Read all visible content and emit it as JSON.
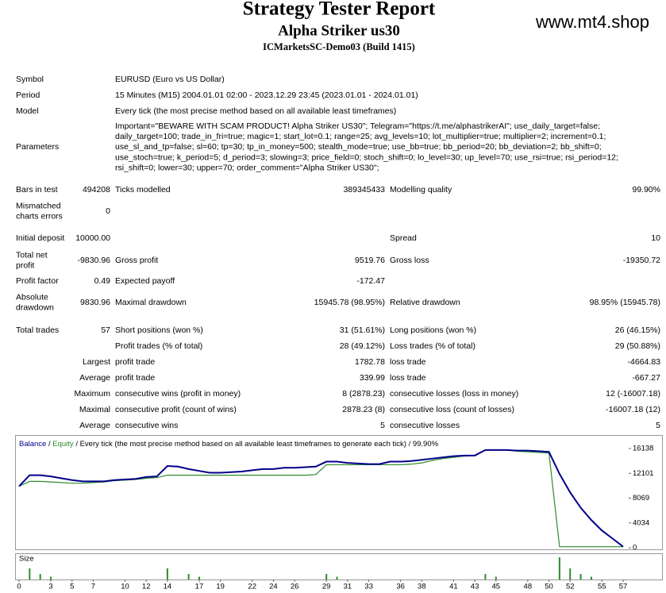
{
  "header": {
    "title": "Strategy Tester Report",
    "subtitle": "Alpha Striker us30",
    "server": "ICMarketsSC-Demo03 (Build 1415)",
    "site": "www.mt4.shop"
  },
  "info": [
    {
      "label": "Symbol",
      "lines": [
        "EURUSD (Euro vs US Dollar)"
      ]
    },
    {
      "label": "Period",
      "lines": [
        "15 Minutes (M15) 2004.01.01 02:00 - 2023.12.29 23:45 (2023.01.01 - 2024.01.01)"
      ]
    },
    {
      "label": "Model",
      "lines": [
        "Every tick (the most precise method based on all available least timeframes)"
      ]
    },
    {
      "label": "Parameters",
      "lines": [
        "Important=\"BEWARE WITH SCAM PRODUCT! Alpha Striker US30\"; Telegram=\"https://t.me/alphastrikerAI\"; use_daily_target=false;",
        "daily_target=100; trade_in_fri=true; magic=1; start_lot=0.1; range=25; avg_levels=10; lot_multiplier=true; multiplier=2; increment=0.1;",
        "use_sl_and_tp=false; sl=60; tp=30; tp_in_money=500; stealth_mode=true; use_bb=true; bb_period=20; bb_deviation=2; bb_shift=0;",
        "use_stoch=true; k_period=5; d_period=3; slowing=3; price_field=0; stoch_shift=0; lo_level=30; up_level=70; use_rsi=true; rsi_period=12;",
        "rsi_shift=0; lower=30; upper=70; order_comment=\"Alpha Striker US30\";"
      ]
    }
  ],
  "stats": [
    {
      "label": [
        "Bars in test"
      ],
      "value": "494208",
      "label2": "Ticks modelled",
      "value2": "389345433",
      "label3": "Modelling quality",
      "value3": "99.90%"
    },
    {
      "label": [
        "Mismatched",
        "charts errors"
      ],
      "value": "0"
    },
    {
      "label": [
        "Initial deposit"
      ],
      "value": "10000.00",
      "label3": "Spread",
      "value3": "10"
    },
    {
      "label": [
        "Total net",
        "profit"
      ],
      "value": "-9830.96",
      "label2": "Gross profit",
      "value2": "9519.76",
      "label3": "Gross loss",
      "value3": "-19350.72"
    },
    {
      "label": [
        "Profit factor"
      ],
      "value": "0.49",
      "label2": "Expected payoff",
      "value2": "-172.47"
    },
    {
      "label": [
        "Absolute",
        "drawdown"
      ],
      "value": "9830.96",
      "label2": "Maximal drawdown",
      "value2": "15945.78 (98.95%)",
      "label3": "Relative drawdown",
      "value3": "98.95% (15945.78)"
    },
    {
      "label": [
        "Total trades"
      ],
      "value": "57",
      "label2": "Short positions (won %)",
      "value2": "31 (51.61%)",
      "label3": "Long positions (won %)",
      "value3": "26 (46.15%)"
    },
    {
      "label2": "Profit trades (% of total)",
      "value2": "28 (49.12%)",
      "label3": "Loss trades (% of total)",
      "value3": "29 (50.88%)"
    },
    {
      "value": "Largest",
      "label2": "profit trade",
      "value2": "1782.78",
      "label3": "loss trade",
      "value3": "-4664.83"
    },
    {
      "value": "Average",
      "label2": "profit trade",
      "value2": "339.99",
      "label3": "loss trade",
      "value3": "-667.27"
    },
    {
      "value": "Maximum",
      "label2": "consecutive wins (profit in money)",
      "value2": "8 (2878.23)",
      "label3": "consecutive losses (loss in money)",
      "value3": "12 (-16007.18)"
    },
    {
      "value": "Maximal",
      "label2": "consecutive profit (count of wins)",
      "value2": "2878.23 (8)",
      "label3": "consecutive loss (count of losses)",
      "value3": "-16007.18 (12)"
    },
    {
      "value": "Average",
      "label2": "consecutive wins",
      "value2": "5",
      "label3": "consecutive losses",
      "value3": "5"
    }
  ],
  "chart_data": {
    "type": "line",
    "separator": "/",
    "caption": "/ Every tick (the most precise method based on all available least timeframes to generate each tick) / 99.90%",
    "xlim": [
      0,
      57
    ],
    "xticks": [
      0,
      3,
      5,
      7,
      10,
      12,
      14,
      17,
      19,
      22,
      24,
      26,
      29,
      31,
      33,
      36,
      38,
      41,
      43,
      45,
      48,
      50,
      52,
      55,
      57
    ],
    "ylim": [
      0,
      16138
    ],
    "yticks": [
      16138,
      12101,
      8069,
      4034,
      0
    ],
    "series": [
      {
        "name": "Balance",
        "color": "#00008b",
        "values": [
          10000,
          11800,
          11800,
          11600,
          11300,
          11000,
          10800,
          10800,
          10800,
          11000,
          11100,
          11200,
          11500,
          11600,
          13300,
          13200,
          12800,
          12500,
          12200,
          12200,
          12300,
          12400,
          12600,
          12800,
          12800,
          13000,
          13000,
          13100,
          13200,
          14000,
          14000,
          13800,
          13700,
          13600,
          13600,
          14000,
          14000,
          14100,
          14300,
          14500,
          14700,
          14900,
          15000,
          15000,
          15900,
          15900,
          15900,
          15800,
          15800,
          15700,
          15600,
          12000,
          9000,
          6500,
          4500,
          2800,
          1500,
          170
        ]
      },
      {
        "name": "Equity",
        "color": "#2e8b2e",
        "values": [
          10000,
          10800,
          10800,
          10700,
          10600,
          10500,
          10500,
          10600,
          10700,
          10900,
          11000,
          11100,
          11300,
          11400,
          11800,
          11800,
          11800,
          11800,
          11800,
          11800,
          11800,
          11800,
          11800,
          11800,
          11800,
          11800,
          11800,
          11800,
          11900,
          13500,
          13500,
          13500,
          13500,
          13500,
          13500,
          13500,
          13500,
          13600,
          13800,
          14200,
          14500,
          14700,
          14900,
          15000,
          15900,
          15900,
          15900,
          15700,
          15600,
          15500,
          15400,
          170,
          170,
          170,
          170,
          170,
          170,
          170
        ]
      }
    ],
    "size_label": "Size",
    "sizes": [
      0,
      0.4,
      0.2,
      0.1,
      0,
      0,
      0,
      0,
      0,
      0,
      0,
      0,
      0,
      0,
      0.4,
      0,
      0.2,
      0.1,
      0,
      0,
      0,
      0,
      0,
      0,
      0,
      0,
      0,
      0,
      0,
      0.2,
      0.1,
      0,
      0,
      0,
      0,
      0,
      0,
      0,
      0,
      0,
      0,
      0,
      0,
      0,
      0.2,
      0.1,
      0,
      0,
      0,
      0,
      0,
      0.8,
      0.4,
      0.2,
      0.1,
      0,
      0,
      0
    ],
    "sizes_color": "#2e8b2e"
  }
}
